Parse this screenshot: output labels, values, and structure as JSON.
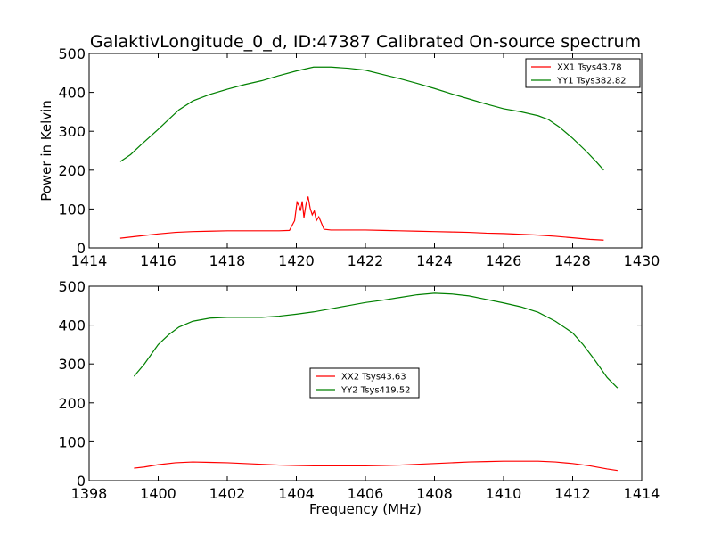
{
  "figure_title": "GalaktivLongitude_0_d, ID:47387 Calibrated On-source spectrum",
  "chart_data": [
    {
      "type": "line",
      "ylabel": "Power in Kelvin",
      "xlabel": "",
      "xlim": [
        1414,
        1430
      ],
      "ylim": [
        0,
        500
      ],
      "xticks": [
        1414,
        1416,
        1418,
        1420,
        1422,
        1424,
        1426,
        1428,
        1430
      ],
      "yticks": [
        0,
        100,
        200,
        300,
        400,
        500
      ],
      "grid": false,
      "legend_position": "top-right",
      "series": [
        {
          "name": "XX1 Tsys43.78",
          "color": "#ff0000",
          "points": [
            [
              1414.9,
              25
            ],
            [
              1415.5,
              31
            ],
            [
              1416.0,
              36
            ],
            [
              1416.5,
              40
            ],
            [
              1417.0,
              42
            ],
            [
              1417.5,
              43
            ],
            [
              1418.0,
              44
            ],
            [
              1418.5,
              44
            ],
            [
              1419.0,
              44
            ],
            [
              1419.5,
              44
            ],
            [
              1419.8,
              45
            ],
            [
              1419.95,
              70
            ],
            [
              1420.02,
              118
            ],
            [
              1420.08,
              108
            ],
            [
              1420.12,
              95
            ],
            [
              1420.17,
              120
            ],
            [
              1420.22,
              78
            ],
            [
              1420.28,
              112
            ],
            [
              1420.34,
              132
            ],
            [
              1420.4,
              102
            ],
            [
              1420.46,
              85
            ],
            [
              1420.52,
              95
            ],
            [
              1420.58,
              70
            ],
            [
              1420.65,
              80
            ],
            [
              1420.72,
              65
            ],
            [
              1420.8,
              48
            ],
            [
              1421.0,
              46
            ],
            [
              1421.5,
              46
            ],
            [
              1422.0,
              46
            ],
            [
              1422.5,
              45
            ],
            [
              1423.0,
              44
            ],
            [
              1423.5,
              43
            ],
            [
              1424.0,
              42
            ],
            [
              1424.5,
              41
            ],
            [
              1425.0,
              40
            ],
            [
              1425.5,
              38
            ],
            [
              1426.0,
              37
            ],
            [
              1426.5,
              35
            ],
            [
              1427.0,
              33
            ],
            [
              1427.5,
              30
            ],
            [
              1428.0,
              26
            ],
            [
              1428.5,
              22
            ],
            [
              1428.9,
              20
            ]
          ]
        },
        {
          "name": "YY1 Tsys382.82",
          "color": "#008000",
          "points": [
            [
              1414.9,
              222
            ],
            [
              1415.2,
              240
            ],
            [
              1415.5,
              265
            ],
            [
              1416.0,
              305
            ],
            [
              1416.3,
              330
            ],
            [
              1416.6,
              355
            ],
            [
              1417.0,
              378
            ],
            [
              1417.5,
              395
            ],
            [
              1418.0,
              408
            ],
            [
              1418.5,
              420
            ],
            [
              1419.0,
              430
            ],
            [
              1419.5,
              443
            ],
            [
              1420.0,
              455
            ],
            [
              1420.5,
              465
            ],
            [
              1421.0,
              465
            ],
            [
              1421.5,
              462
            ],
            [
              1422.0,
              457
            ],
            [
              1422.5,
              446
            ],
            [
              1423.0,
              435
            ],
            [
              1423.5,
              423
            ],
            [
              1424.0,
              410
            ],
            [
              1424.5,
              396
            ],
            [
              1425.0,
              383
            ],
            [
              1425.5,
              370
            ],
            [
              1426.0,
              358
            ],
            [
              1426.5,
              350
            ],
            [
              1427.0,
              340
            ],
            [
              1427.3,
              330
            ],
            [
              1427.6,
              312
            ],
            [
              1428.0,
              282
            ],
            [
              1428.4,
              248
            ],
            [
              1428.7,
              220
            ],
            [
              1428.9,
              200
            ]
          ]
        }
      ]
    },
    {
      "type": "line",
      "ylabel": "",
      "xlabel": "Frequency (MHz)",
      "xlim": [
        1398,
        1414
      ],
      "ylim": [
        0,
        500
      ],
      "xticks": [
        1398,
        1400,
        1402,
        1404,
        1406,
        1408,
        1410,
        1412,
        1414
      ],
      "yticks": [
        0,
        100,
        200,
        300,
        400,
        500
      ],
      "grid": false,
      "legend_position": "center",
      "series": [
        {
          "name": "XX2 Tsys43.63",
          "color": "#ff0000",
          "points": [
            [
              1399.3,
              32
            ],
            [
              1399.6,
              35
            ],
            [
              1400.0,
              41
            ],
            [
              1400.5,
              46
            ],
            [
              1401.0,
              48
            ],
            [
              1401.5,
              47
            ],
            [
              1402.0,
              46
            ],
            [
              1402.5,
              44
            ],
            [
              1403.0,
              42
            ],
            [
              1403.5,
              40
            ],
            [
              1404.0,
              39
            ],
            [
              1404.5,
              38
            ],
            [
              1405.0,
              38
            ],
            [
              1405.5,
              38
            ],
            [
              1406.0,
              38
            ],
            [
              1406.5,
              39
            ],
            [
              1407.0,
              40
            ],
            [
              1407.5,
              42
            ],
            [
              1408.0,
              44
            ],
            [
              1408.5,
              46
            ],
            [
              1409.0,
              48
            ],
            [
              1409.5,
              49
            ],
            [
              1410.0,
              50
            ],
            [
              1410.5,
              50
            ],
            [
              1411.0,
              50
            ],
            [
              1411.5,
              48
            ],
            [
              1412.0,
              44
            ],
            [
              1412.5,
              38
            ],
            [
              1413.0,
              30
            ],
            [
              1413.3,
              26
            ]
          ]
        },
        {
          "name": "YY2 Tsys419.52",
          "color": "#008000",
          "points": [
            [
              1399.3,
              268
            ],
            [
              1399.6,
              300
            ],
            [
              1400.0,
              350
            ],
            [
              1400.3,
              375
            ],
            [
              1400.6,
              395
            ],
            [
              1401.0,
              410
            ],
            [
              1401.5,
              418
            ],
            [
              1402.0,
              420
            ],
            [
              1402.5,
              420
            ],
            [
              1403.0,
              420
            ],
            [
              1403.5,
              423
            ],
            [
              1404.0,
              428
            ],
            [
              1404.5,
              434
            ],
            [
              1405.0,
              442
            ],
            [
              1405.5,
              450
            ],
            [
              1406.0,
              458
            ],
            [
              1406.5,
              464
            ],
            [
              1407.0,
              471
            ],
            [
              1407.5,
              478
            ],
            [
              1408.0,
              482
            ],
            [
              1408.5,
              480
            ],
            [
              1409.0,
              475
            ],
            [
              1409.5,
              466
            ],
            [
              1410.0,
              457
            ],
            [
              1410.5,
              447
            ],
            [
              1411.0,
              433
            ],
            [
              1411.5,
              410
            ],
            [
              1412.0,
              380
            ],
            [
              1412.3,
              350
            ],
            [
              1412.6,
              315
            ],
            [
              1413.0,
              265
            ],
            [
              1413.3,
              238
            ]
          ]
        }
      ]
    }
  ]
}
